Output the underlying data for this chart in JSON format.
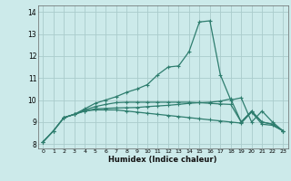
{
  "xlabel": "Humidex (Indice chaleur)",
  "bg_color": "#cceaea",
  "grid_color": "#aacccc",
  "line_color": "#2e7d6e",
  "xlim": [
    -0.5,
    23.5
  ],
  "ylim": [
    7.8,
    14.3
  ],
  "xticks": [
    0,
    1,
    2,
    3,
    4,
    5,
    6,
    7,
    8,
    9,
    10,
    11,
    12,
    13,
    14,
    15,
    16,
    17,
    18,
    19,
    20,
    21,
    22,
    23
  ],
  "yticks": [
    8,
    9,
    10,
    11,
    12,
    13,
    14
  ],
  "line1_x": [
    0,
    1,
    2,
    3,
    4,
    5,
    6,
    7,
    8,
    9,
    10,
    11,
    12,
    13,
    14,
    15,
    16,
    17,
    18,
    19,
    20,
    21,
    22,
    23
  ],
  "line1_y": [
    8.1,
    8.6,
    9.2,
    9.35,
    9.5,
    9.55,
    9.55,
    9.55,
    9.5,
    9.45,
    9.4,
    9.35,
    9.3,
    9.25,
    9.2,
    9.15,
    9.1,
    9.05,
    9.0,
    8.95,
    9.45,
    8.9,
    8.85,
    8.6
  ],
  "line2_x": [
    0,
    1,
    2,
    3,
    4,
    5,
    6,
    7,
    8,
    9,
    10,
    11,
    12,
    13,
    14,
    15,
    16,
    17,
    18,
    19,
    20,
    21,
    22,
    23
  ],
  "line2_y": [
    8.1,
    8.6,
    9.2,
    9.35,
    9.5,
    9.6,
    9.62,
    9.64,
    9.65,
    9.66,
    9.7,
    9.73,
    9.76,
    9.8,
    9.85,
    9.88,
    9.9,
    9.95,
    10.05,
    9.0,
    9.5,
    9.0,
    8.9,
    8.6
  ],
  "line3_x": [
    0,
    1,
    2,
    3,
    4,
    5,
    6,
    7,
    8,
    9,
    10,
    11,
    12,
    13,
    14,
    15,
    16,
    17,
    18,
    19,
    20,
    21,
    22,
    23
  ],
  "line3_y": [
    8.1,
    8.6,
    9.2,
    9.35,
    9.55,
    9.7,
    9.8,
    9.88,
    9.9,
    9.9,
    9.9,
    9.9,
    9.9,
    9.9,
    9.9,
    9.88,
    9.85,
    9.82,
    9.8,
    9.0,
    9.48,
    9.0,
    8.9,
    8.6
  ],
  "line4_x": [
    2,
    3,
    4,
    5,
    6,
    7,
    8,
    9,
    10,
    11,
    12,
    13,
    14,
    15,
    16,
    17,
    18,
    19,
    20,
    21,
    22,
    23
  ],
  "line4_y": [
    9.2,
    9.35,
    9.6,
    9.85,
    10.0,
    10.15,
    10.35,
    10.5,
    10.7,
    11.15,
    11.5,
    11.55,
    12.2,
    13.55,
    13.6,
    11.15,
    10.0,
    10.1,
    9.0,
    9.5,
    9.0,
    8.6
  ]
}
